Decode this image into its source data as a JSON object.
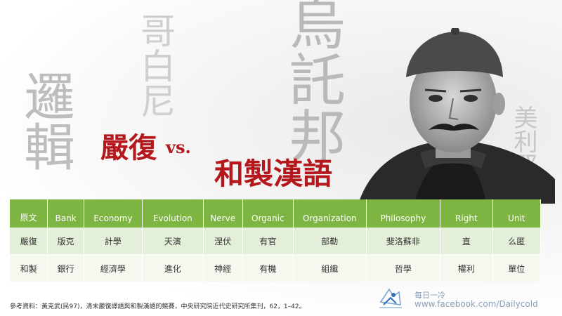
{
  "background_chars": [
    "邏輯",
    "哥白尼",
    "烏託邦",
    "美利堅"
  ],
  "title": {
    "left": "嚴復",
    "vs": "vs.",
    "right": "和製漢語"
  },
  "table": {
    "headers": [
      "原文",
      "Bank",
      "Economy",
      "Evolution",
      "Nerve",
      "Organic",
      "Organization",
      "Philosophy",
      "Right",
      "Unit"
    ],
    "rows": [
      [
        "嚴復",
        "版克",
        "計學",
        "天演",
        "涅伏",
        "有官",
        "部勒",
        "斐洛蘇非",
        "直",
        "么匿"
      ],
      [
        "和製",
        "銀行",
        "經濟學",
        "進化",
        "神經",
        "有機",
        "組織",
        "哲學",
        "權利",
        "單位"
      ]
    ]
  },
  "reference": "參考資料：黃克武(民97)，清末嚴復譯語與和製漢語的競賽，中央研究院近代史研究所集刊，62，1–42。",
  "brand": {
    "name": "每日一冷",
    "url": "www.facebook.com/Dailycold"
  },
  "colors": {
    "title_red": "#b4181c",
    "header_green": "#7eb441",
    "row_light": "#e2eed6",
    "row_lighter": "#f3f7ee"
  }
}
